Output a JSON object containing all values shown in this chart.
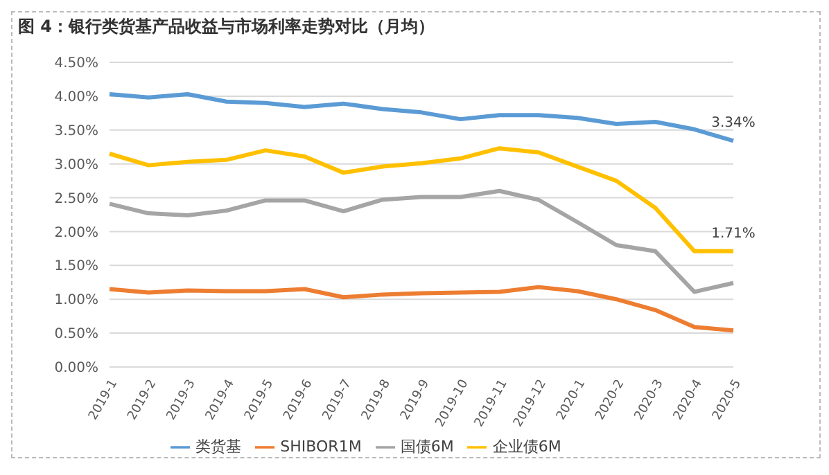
{
  "chart_data": {
    "type": "line",
    "title": "图 4：银行类货基产品收益与市场利率走势对比（月均）",
    "categories": [
      "2019-1",
      "2019-2",
      "2019-3",
      "2019-4",
      "2019-5",
      "2019-6",
      "2019-7",
      "2019-8",
      "2019-9",
      "2019-10",
      "2019-11",
      "2019-12",
      "2020-1",
      "2020-2",
      "2020-3",
      "2020-4",
      "2020-5"
    ],
    "series": [
      {
        "name": "类货基",
        "color": "#5b9bd5",
        "values": [
          4.03,
          3.98,
          4.03,
          3.92,
          3.9,
          3.84,
          3.89,
          3.81,
          3.76,
          3.66,
          3.72,
          3.72,
          3.68,
          3.59,
          3.62,
          3.51,
          3.34
        ],
        "value_labels": [
          null,
          null,
          null,
          null,
          null,
          null,
          null,
          null,
          null,
          null,
          null,
          null,
          null,
          null,
          null,
          null,
          "3.34%"
        ]
      },
      {
        "name": "SHIBOR1M",
        "color": "#ed7d31",
        "values": [
          1.15,
          1.1,
          1.13,
          1.12,
          1.12,
          1.15,
          1.03,
          1.07,
          1.09,
          1.1,
          1.11,
          1.18,
          1.12,
          1.0,
          0.84,
          0.59,
          0.54
        ]
      },
      {
        "name": "国债6M",
        "color": "#a5a5a5",
        "values": [
          2.41,
          2.27,
          2.24,
          2.31,
          2.46,
          2.46,
          2.3,
          2.47,
          2.51,
          2.51,
          2.6,
          2.47,
          2.14,
          1.8,
          1.71,
          1.11,
          1.24
        ]
      },
      {
        "name": "企业债6M",
        "color": "#ffc000",
        "values": [
          3.15,
          2.98,
          3.03,
          3.06,
          3.2,
          3.11,
          2.87,
          2.96,
          3.01,
          3.08,
          3.23,
          3.17,
          2.96,
          2.75,
          2.35,
          1.71,
          1.71
        ],
        "value_labels": [
          null,
          null,
          null,
          null,
          null,
          null,
          null,
          null,
          null,
          null,
          null,
          null,
          null,
          null,
          null,
          null,
          "1.71%"
        ]
      }
    ],
    "ylim": [
      0,
      4.5
    ],
    "yticks": [
      {
        "value": 0,
        "label": "0.00%"
      },
      {
        "value": 0.5,
        "label": "0.50%"
      },
      {
        "value": 1,
        "label": "1.00%"
      },
      {
        "value": 1.5,
        "label": "1.50%"
      },
      {
        "value": 2,
        "label": "2.00%"
      },
      {
        "value": 2.5,
        "label": "2.50%"
      },
      {
        "value": 3,
        "label": "3.00%"
      },
      {
        "value": 3.5,
        "label": "3.50%"
      },
      {
        "value": 4,
        "label": "4.00%"
      },
      {
        "value": 4.5,
        "label": "4.50%"
      }
    ],
    "grid": "y",
    "legend": "bottom",
    "marker": "none",
    "line_style": "solid"
  }
}
